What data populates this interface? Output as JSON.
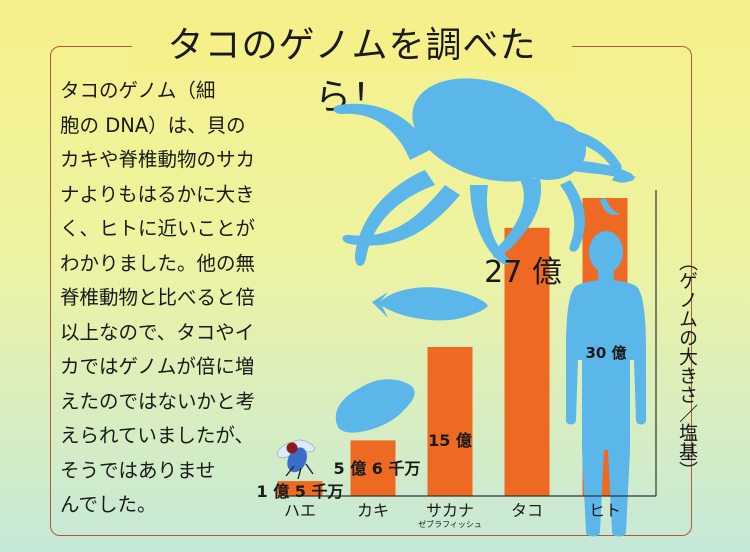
{
  "title": "タコのゲノムを調べたら！",
  "description": "タコのゲノム（細\n胞の DNA）は、貝の\nカキや脊椎動物のサカ\nナよりもはるかに大き\nく、ヒトに近いことが\nわかりました。他の無\n脊椎動物と比べると倍\n以上なので、タコやイ\nカではゲノムが倍に増\nえたのではないかと考\nえられていましたが、\nそうではありませ\nんでした。",
  "colors": {
    "bar": "#ee6a22",
    "silhouette": "#5bb6ea",
    "frame": "#b05a3a"
  },
  "icons": [
    "fly-icon",
    "oyster-icon",
    "fish-icon",
    "octopus-icon",
    "human-icon"
  ],
  "chart_data": {
    "type": "bar",
    "categories": [
      "ハエ",
      "カキ",
      "サカナ",
      "タコ",
      "ヒト"
    ],
    "category_notes": [
      "",
      "",
      "ゼブラフィッシュ",
      "",
      ""
    ],
    "values": [
      150000000,
      560000000,
      1500000000,
      2700000000,
      3000000000
    ],
    "value_labels": [
      "1 億 5 千万",
      "5 億 6 千万",
      "15 億",
      "27 億",
      "30 億"
    ],
    "ylabel": "（ゲノムの大きさ／塩基）",
    "ylim": [
      0,
      3000000000
    ],
    "grid": false
  }
}
